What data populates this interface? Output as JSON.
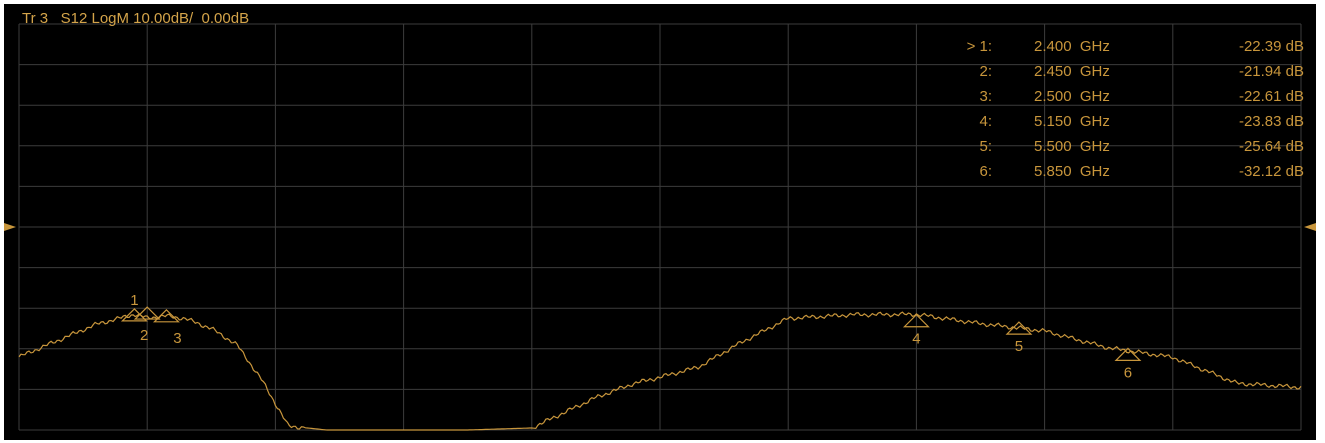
{
  "window": {
    "trace_title": "Tr 3   S12 LogM 10.00dB/  0.00dB"
  },
  "colors": {
    "trace": "#c8963c",
    "grid": "#3c3c3c",
    "background": "#000000",
    "reference_arrow": "#c8963c"
  },
  "markers": [
    {
      "id": "1",
      "label": "> 1:",
      "freq": "2.400  GHz",
      "value": "-22.39 dB"
    },
    {
      "id": "2",
      "label": "2:",
      "freq": "2.450  GHz",
      "value": "-21.94 dB"
    },
    {
      "id": "3",
      "label": "3:",
      "freq": "2.500  GHz",
      "value": "-22.61 dB"
    },
    {
      "id": "4",
      "label": "4:",
      "freq": "5.150  GHz",
      "value": "-23.83 dB"
    },
    {
      "id": "5",
      "label": "5:",
      "freq": "5.500  GHz",
      "value": "-25.64 dB"
    },
    {
      "id": "6",
      "label": "6:",
      "freq": "5.850  GHz",
      "value": "-32.12 dB"
    }
  ],
  "chart_data": {
    "type": "line",
    "scale": "LogM 10.00 dB/div",
    "reference_level_db": 0,
    "grid": true,
    "x_divisions": 10,
    "y_divisions": 10,
    "ylim_db": [
      -50,
      50
    ],
    "series": [
      {
        "trace": "Tr 3",
        "parameter": "S12",
        "x_div": [
          0.0,
          0.3,
          0.6,
          0.9,
          1.0,
          1.15,
          1.3,
          1.5,
          1.7,
          1.9,
          2.1,
          2.4,
          2.7,
          3.0,
          3.5,
          4.0,
          4.5,
          4.8,
          5.0,
          5.3,
          5.6,
          6.0,
          6.5,
          7.0,
          7.5,
          8.0,
          8.5,
          9.0,
          9.5,
          10.0
        ],
        "y_db": [
          -32,
          -28,
          -24,
          -21.5,
          -22.4,
          -21.9,
          -22.6,
          -25,
          -29,
          -38,
          -49,
          -50,
          -50,
          -50,
          -50,
          -49.5,
          -42,
          -38.5,
          -37,
          -34.5,
          -29,
          -22.5,
          -21.6,
          -21.5,
          -23.8,
          -25.6,
          -29.8,
          -32.1,
          -38.5,
          -39.5
        ]
      }
    ]
  }
}
